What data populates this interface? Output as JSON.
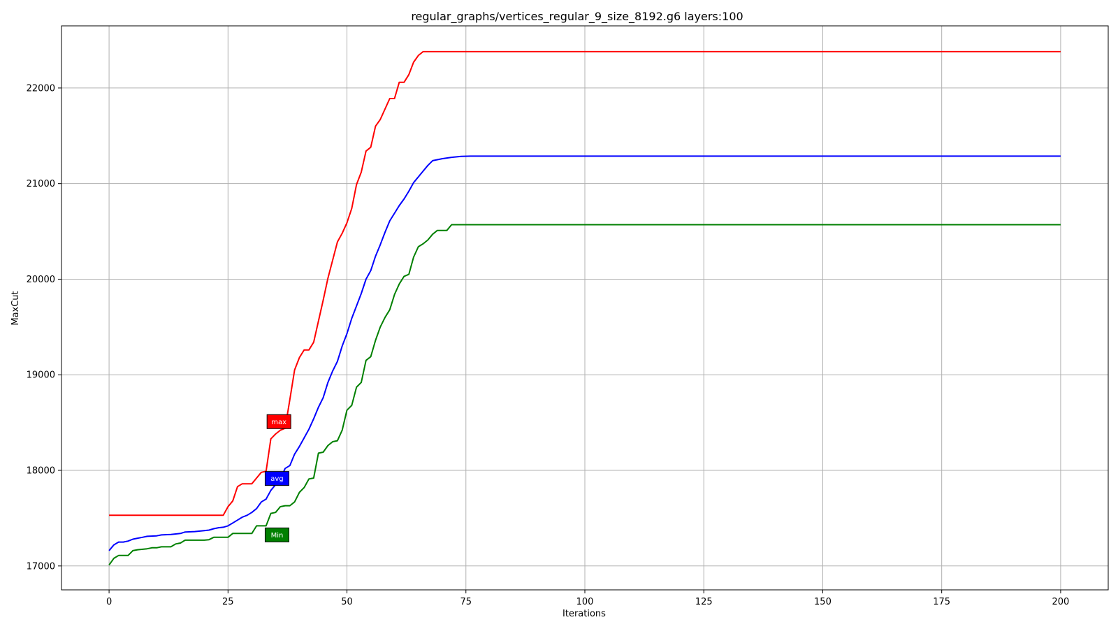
{
  "chart_data": {
    "type": "line",
    "title": "regular_graphs/vertices_regular_9_size_8192.g6 layers:100",
    "xlabel": "Iterations",
    "ylabel": "MaxCut",
    "xlim": [
      -10,
      210
    ],
    "ylim": [
      16750,
      22650
    ],
    "xticks": [
      0,
      25,
      50,
      75,
      100,
      125,
      150,
      175,
      200
    ],
    "yticks": [
      17000,
      18000,
      19000,
      20000,
      21000,
      22000
    ],
    "grid": true,
    "series": [
      {
        "name": "max",
        "color": "#ff0000",
        "points": [
          [
            0,
            17530
          ],
          [
            24,
            17530
          ],
          [
            25,
            17620
          ],
          [
            26,
            17680
          ],
          [
            27,
            17830
          ],
          [
            28,
            17860
          ],
          [
            30,
            17860
          ],
          [
            31,
            17920
          ],
          [
            32,
            17980
          ],
          [
            33,
            17990
          ],
          [
            34,
            18330
          ],
          [
            35,
            18380
          ],
          [
            36,
            18420
          ],
          [
            37,
            18440
          ],
          [
            38,
            18740
          ],
          [
            39,
            19050
          ],
          [
            40,
            19180
          ],
          [
            41,
            19260
          ],
          [
            42,
            19260
          ],
          [
            43,
            19340
          ],
          [
            44,
            19560
          ],
          [
            45,
            19780
          ],
          [
            46,
            20010
          ],
          [
            47,
            20200
          ],
          [
            48,
            20390
          ],
          [
            49,
            20480
          ],
          [
            50,
            20590
          ],
          [
            51,
            20740
          ],
          [
            52,
            20990
          ],
          [
            53,
            21120
          ],
          [
            54,
            21340
          ],
          [
            55,
            21380
          ],
          [
            56,
            21600
          ],
          [
            57,
            21670
          ],
          [
            58,
            21780
          ],
          [
            59,
            21890
          ],
          [
            60,
            21890
          ],
          [
            61,
            22060
          ],
          [
            62,
            22060
          ],
          [
            63,
            22140
          ],
          [
            64,
            22270
          ],
          [
            65,
            22340
          ],
          [
            66,
            22380
          ],
          [
            200,
            22380
          ]
        ]
      },
      {
        "name": "avg",
        "color": "#0000ff",
        "points": [
          [
            0,
            17160
          ],
          [
            1,
            17220
          ],
          [
            2,
            17250
          ],
          [
            3,
            17250
          ],
          [
            4,
            17260
          ],
          [
            5,
            17280
          ],
          [
            6,
            17290
          ],
          [
            7,
            17300
          ],
          [
            8,
            17310
          ],
          [
            10,
            17315
          ],
          [
            11,
            17325
          ],
          [
            13,
            17330
          ],
          [
            15,
            17340
          ],
          [
            16,
            17355
          ],
          [
            18,
            17360
          ],
          [
            20,
            17370
          ],
          [
            21,
            17375
          ],
          [
            22,
            17390
          ],
          [
            23,
            17400
          ],
          [
            24,
            17405
          ],
          [
            25,
            17420
          ],
          [
            26,
            17450
          ],
          [
            27,
            17480
          ],
          [
            28,
            17510
          ],
          [
            29,
            17530
          ],
          [
            30,
            17560
          ],
          [
            31,
            17600
          ],
          [
            32,
            17670
          ],
          [
            33,
            17700
          ],
          [
            34,
            17790
          ],
          [
            35,
            17850
          ],
          [
            36,
            17900
          ],
          [
            37,
            18020
          ],
          [
            38,
            18050
          ],
          [
            39,
            18170
          ],
          [
            40,
            18250
          ],
          [
            41,
            18340
          ],
          [
            42,
            18430
          ],
          [
            43,
            18540
          ],
          [
            44,
            18660
          ],
          [
            45,
            18760
          ],
          [
            46,
            18920
          ],
          [
            47,
            19040
          ],
          [
            48,
            19140
          ],
          [
            49,
            19300
          ],
          [
            50,
            19430
          ],
          [
            51,
            19590
          ],
          [
            52,
            19720
          ],
          [
            53,
            19850
          ],
          [
            54,
            20000
          ],
          [
            55,
            20090
          ],
          [
            56,
            20240
          ],
          [
            57,
            20360
          ],
          [
            58,
            20490
          ],
          [
            59,
            20610
          ],
          [
            60,
            20690
          ],
          [
            61,
            20770
          ],
          [
            62,
            20840
          ],
          [
            63,
            20920
          ],
          [
            64,
            21010
          ],
          [
            65,
            21070
          ],
          [
            66,
            21130
          ],
          [
            67,
            21190
          ],
          [
            68,
            21240
          ],
          [
            69,
            21250
          ],
          [
            70,
            21260
          ],
          [
            72,
            21275
          ],
          [
            74,
            21285
          ],
          [
            76,
            21287
          ],
          [
            200,
            21287
          ]
        ]
      },
      {
        "name": "Min",
        "color": "#008000",
        "points": [
          [
            0,
            17010
          ],
          [
            1,
            17080
          ],
          [
            2,
            17110
          ],
          [
            4,
            17110
          ],
          [
            5,
            17160
          ],
          [
            6,
            17170
          ],
          [
            8,
            17180
          ],
          [
            9,
            17190
          ],
          [
            10,
            17190
          ],
          [
            11,
            17200
          ],
          [
            13,
            17200
          ],
          [
            14,
            17230
          ],
          [
            15,
            17240
          ],
          [
            16,
            17270
          ],
          [
            20,
            17270
          ],
          [
            21,
            17275
          ],
          [
            22,
            17300
          ],
          [
            25,
            17300
          ],
          [
            26,
            17340
          ],
          [
            30,
            17340
          ],
          [
            31,
            17420
          ],
          [
            33,
            17420
          ],
          [
            34,
            17550
          ],
          [
            35,
            17560
          ],
          [
            36,
            17620
          ],
          [
            37,
            17630
          ],
          [
            38,
            17630
          ],
          [
            39,
            17670
          ],
          [
            40,
            17770
          ],
          [
            41,
            17820
          ],
          [
            42,
            17910
          ],
          [
            43,
            17920
          ],
          [
            44,
            18180
          ],
          [
            45,
            18190
          ],
          [
            46,
            18260
          ],
          [
            47,
            18300
          ],
          [
            48,
            18310
          ],
          [
            49,
            18420
          ],
          [
            50,
            18630
          ],
          [
            51,
            18680
          ],
          [
            52,
            18870
          ],
          [
            53,
            18920
          ],
          [
            54,
            19150
          ],
          [
            55,
            19190
          ],
          [
            56,
            19360
          ],
          [
            57,
            19500
          ],
          [
            58,
            19600
          ],
          [
            59,
            19680
          ],
          [
            60,
            19840
          ],
          [
            61,
            19950
          ],
          [
            62,
            20030
          ],
          [
            63,
            20050
          ],
          [
            64,
            20230
          ],
          [
            65,
            20340
          ],
          [
            66,
            20370
          ],
          [
            67,
            20410
          ],
          [
            68,
            20470
          ],
          [
            69,
            20510
          ],
          [
            71,
            20510
          ],
          [
            72,
            20570
          ],
          [
            200,
            20570
          ]
        ]
      }
    ],
    "legend": [
      {
        "label": "max",
        "color": "#ff0000",
        "x": 35.7,
        "y": 18510
      },
      {
        "label": "avg",
        "color": "#0000ff",
        "x": 35.3,
        "y": 17915
      },
      {
        "label": "Min",
        "color": "#008000",
        "x": 35.3,
        "y": 17325
      }
    ]
  }
}
